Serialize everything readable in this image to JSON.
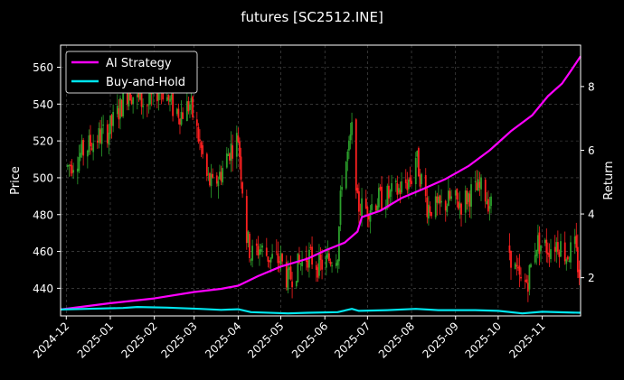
{
  "chart_data": {
    "type": "candlestick-line",
    "title": "futures [SC2512.INE]",
    "xlabel": "",
    "ylabel_left": "Price",
    "ylabel_right": "Return",
    "x_range": [
      "2024-11-27",
      "2025-11-28"
    ],
    "x_ticks": [
      "2024-12",
      "2025-01",
      "2025-02",
      "2025-03",
      "2025-04",
      "2025-05",
      "2025-06",
      "2025-07",
      "2025-08",
      "2025-09",
      "2025-10",
      "2025-11"
    ],
    "y_left": {
      "range": [
        425,
        572
      ],
      "ticks": [
        440,
        460,
        480,
        500,
        520,
        540,
        560
      ]
    },
    "y_right": {
      "range": [
        0.8,
        9.3
      ],
      "ticks": [
        2,
        4,
        6,
        8
      ]
    },
    "grid": true,
    "legend_position": "top-left",
    "colors": {
      "background": "#000000",
      "up_candle": "#2ca02c",
      "down_candle": "#ff2020",
      "strategy": "#ff00ff",
      "benchmark": "#00e5ee",
      "grid": "#555555"
    },
    "price_path": [
      [
        "2024-12-02",
        506
      ],
      [
        "2024-12-10",
        512
      ],
      [
        "2024-12-20",
        520
      ],
      [
        "2024-12-31",
        526
      ],
      [
        "2025-01-08",
        538
      ],
      [
        "2025-01-14",
        548
      ],
      [
        "2025-01-20",
        542
      ],
      [
        "2025-01-28",
        540
      ],
      [
        "2025-02-05",
        550
      ],
      [
        "2025-02-14",
        538
      ],
      [
        "2025-02-20",
        535
      ],
      [
        "2025-02-26",
        540
      ],
      [
        "2025-03-03",
        525
      ],
      [
        "2025-03-06",
        515
      ],
      [
        "2025-03-10",
        500
      ],
      [
        "2025-03-14",
        495
      ],
      [
        "2025-03-20",
        503
      ],
      [
        "2025-03-26",
        515
      ],
      [
        "2025-04-01",
        522
      ],
      [
        "2025-04-07",
        468
      ],
      [
        "2025-04-10",
        458
      ],
      [
        "2025-04-16",
        462
      ],
      [
        "2025-04-24",
        456
      ],
      [
        "2025-05-01",
        455
      ],
      [
        "2025-05-06",
        444
      ],
      [
        "2025-05-13",
        452
      ],
      [
        "2025-05-20",
        458
      ],
      [
        "2025-05-28",
        452
      ],
      [
        "2025-06-03",
        455
      ],
      [
        "2025-06-10",
        460
      ],
      [
        "2025-06-13",
        500
      ],
      [
        "2025-06-18",
        515
      ],
      [
        "2025-06-21",
        530
      ],
      [
        "2025-06-24",
        485
      ],
      [
        "2025-06-30",
        483
      ],
      [
        "2025-07-08",
        488
      ],
      [
        "2025-07-16",
        490
      ],
      [
        "2025-07-24",
        494
      ],
      [
        "2025-08-01",
        500
      ],
      [
        "2025-08-04",
        512
      ],
      [
        "2025-08-12",
        485
      ],
      [
        "2025-08-20",
        483
      ],
      [
        "2025-08-28",
        488
      ],
      [
        "2025-09-05",
        486
      ],
      [
        "2025-09-12",
        492
      ],
      [
        "2025-09-20",
        494
      ],
      [
        "2025-09-26",
        485
      ],
      [
        "2025-10-06",
        468
      ],
      [
        "2025-10-13",
        450
      ],
      [
        "2025-10-18",
        440
      ],
      [
        "2025-10-22",
        445
      ],
      [
        "2025-10-28",
        465
      ],
      [
        "2025-11-05",
        462
      ],
      [
        "2025-11-12",
        465
      ],
      [
        "2025-11-18",
        458
      ],
      [
        "2025-11-24",
        462
      ],
      [
        "2025-11-27",
        448
      ]
    ],
    "price_gaps": [
      [
        "2025-09-28",
        "2025-10-08"
      ]
    ],
    "series": [
      {
        "name": "AI Strategy",
        "axis": "right",
        "points": [
          [
            "2024-11-27",
            1.0
          ],
          [
            "2025-01-01",
            1.2
          ],
          [
            "2025-02-01",
            1.35
          ],
          [
            "2025-03-01",
            1.55
          ],
          [
            "2025-03-20",
            1.65
          ],
          [
            "2025-04-01",
            1.75
          ],
          [
            "2025-04-15",
            2.05
          ],
          [
            "2025-05-01",
            2.35
          ],
          [
            "2025-05-20",
            2.6
          ],
          [
            "2025-06-01",
            2.85
          ],
          [
            "2025-06-15",
            3.1
          ],
          [
            "2025-06-24",
            3.45
          ],
          [
            "2025-06-27",
            3.9
          ],
          [
            "2025-07-10",
            4.1
          ],
          [
            "2025-07-25",
            4.5
          ],
          [
            "2025-08-10",
            4.8
          ],
          [
            "2025-08-25",
            5.1
          ],
          [
            "2025-09-10",
            5.5
          ],
          [
            "2025-09-25",
            6.0
          ],
          [
            "2025-10-10",
            6.6
          ],
          [
            "2025-10-25",
            7.1
          ],
          [
            "2025-11-05",
            7.7
          ],
          [
            "2025-11-15",
            8.1
          ],
          [
            "2025-11-22",
            8.55
          ],
          [
            "2025-11-28",
            8.95
          ]
        ]
      },
      {
        "name": "Buy-and-Hold",
        "axis": "right",
        "points": [
          [
            "2024-11-27",
            1.0
          ],
          [
            "2024-12-15",
            1.02
          ],
          [
            "2025-01-10",
            1.05
          ],
          [
            "2025-01-20",
            1.08
          ],
          [
            "2025-02-10",
            1.06
          ],
          [
            "2025-03-05",
            1.02
          ],
          [
            "2025-03-20",
            0.99
          ],
          [
            "2025-04-01",
            1.01
          ],
          [
            "2025-04-10",
            0.92
          ],
          [
            "2025-05-06",
            0.88
          ],
          [
            "2025-05-20",
            0.9
          ],
          [
            "2025-06-10",
            0.92
          ],
          [
            "2025-06-20",
            1.02
          ],
          [
            "2025-06-25",
            0.96
          ],
          [
            "2025-07-15",
            0.98
          ],
          [
            "2025-08-04",
            1.02
          ],
          [
            "2025-08-20",
            0.98
          ],
          [
            "2025-09-15",
            0.98
          ],
          [
            "2025-10-01",
            0.96
          ],
          [
            "2025-10-18",
            0.88
          ],
          [
            "2025-11-01",
            0.93
          ],
          [
            "2025-11-28",
            0.9
          ]
        ]
      }
    ]
  }
}
